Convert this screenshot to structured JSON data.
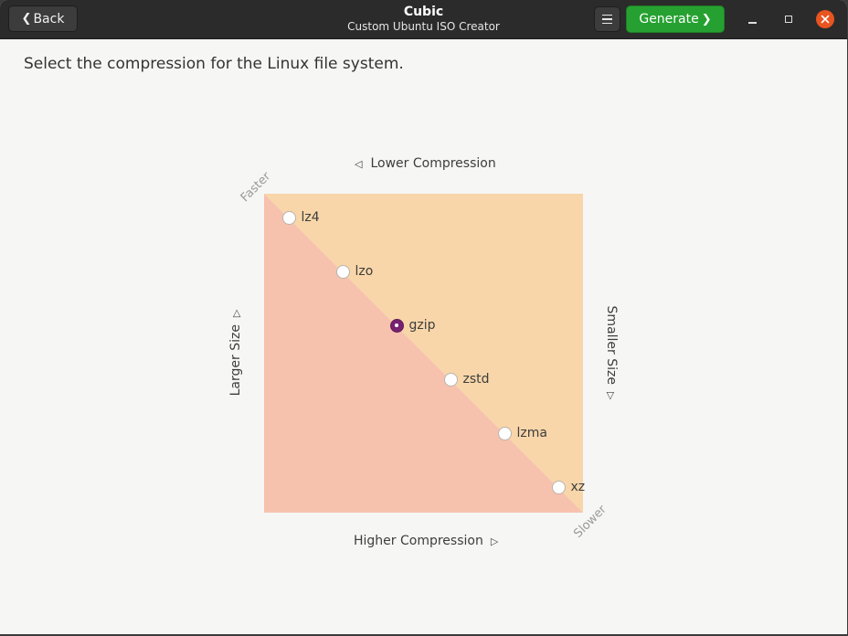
{
  "window": {
    "title": "Cubic",
    "subtitle": "Custom Ubuntu ISO Creator",
    "back_label": "Back",
    "generate_label": "Generate",
    "accent_green": "#26a131",
    "close_color": "#e95420"
  },
  "main": {
    "instruction": "Select the compression for the Linux file system.",
    "top_label": "Lower Compression",
    "bottom_label": "Higher Compression",
    "left_label": "Larger Size",
    "right_label": "Smaller Size",
    "corner_top_left": "Faster",
    "corner_bottom_right": "Slower",
    "upper_region_color": "#f8d6a9",
    "lower_region_color": "#f6c2ad",
    "selected_color": "#77216f",
    "options": [
      {
        "label": "lz4",
        "selected": false
      },
      {
        "label": "lzo",
        "selected": false
      },
      {
        "label": "gzip",
        "selected": true
      },
      {
        "label": "zstd",
        "selected": false
      },
      {
        "label": "lzma",
        "selected": false
      },
      {
        "label": "xz",
        "selected": false
      }
    ]
  }
}
